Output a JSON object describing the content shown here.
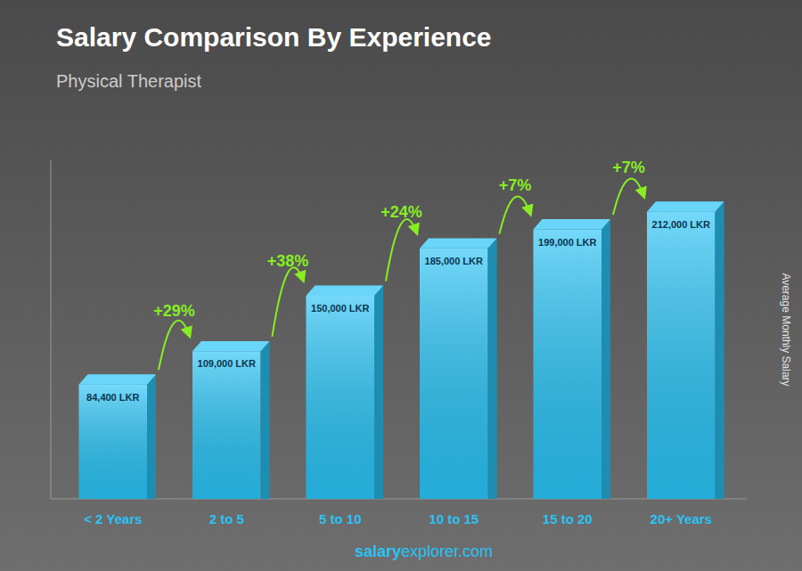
{
  "chart_data": {
    "type": "bar",
    "title": "Salary Comparison By Experience",
    "subtitle": "Physical Therapist",
    "ylabel": "Average Monthly Salary",
    "categories": [
      "< 2 Years",
      "2 to 5",
      "5 to 10",
      "10 to 15",
      "15 to 20",
      "20+ Years"
    ],
    "values": [
      84400,
      109000,
      150000,
      185000,
      199000,
      212000
    ],
    "value_labels": [
      "84,400 LKR",
      "109,000 LKR",
      "150,000 LKR",
      "185,000 LKR",
      "199,000 LKR",
      "212,000 LKR"
    ],
    "data_labels": true,
    "annotations": [
      "+29%",
      "+38%",
      "+24%",
      "+7%",
      "+7%"
    ],
    "footer": [
      "salary",
      "explorer.com"
    ],
    "color": "#29C4F6",
    "ylim": [
      0,
      250000
    ],
    "tick_labels": "x",
    "grid": false
  }
}
